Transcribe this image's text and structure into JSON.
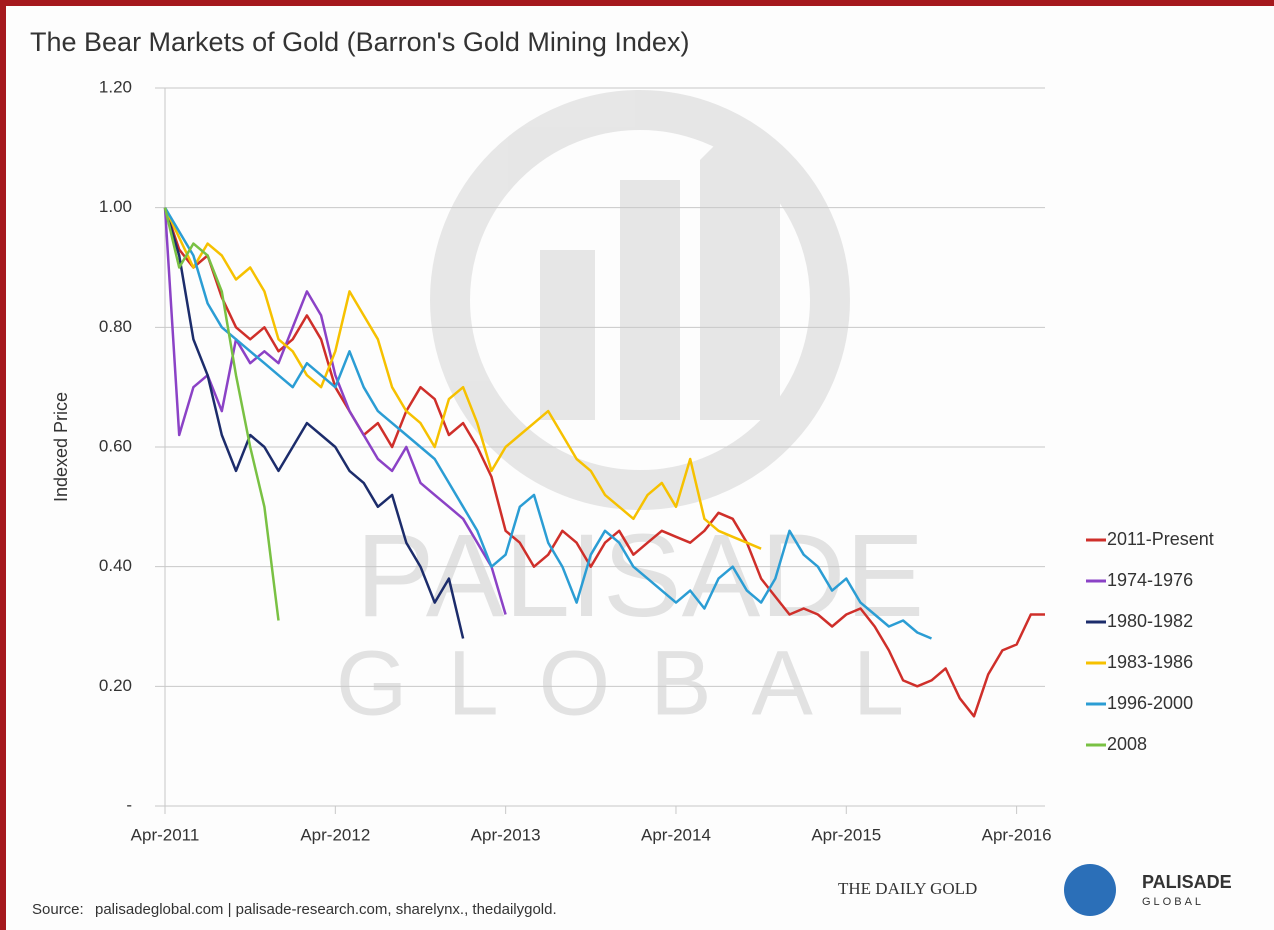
{
  "chart_data": {
    "type": "line",
    "title": "The Bear Markets of Gold (Barron's Gold Mining Index)",
    "y_label": "Indexed Price",
    "x": [
      "2011-04",
      "2011-05",
      "2011-06",
      "2011-07",
      "2011-08",
      "2011-09",
      "2011-10",
      "2011-11",
      "2011-12",
      "2012-01",
      "2012-02",
      "2012-03",
      "2012-04",
      "2012-05",
      "2012-06",
      "2012-07",
      "2012-08",
      "2012-09",
      "2012-10",
      "2012-11",
      "2012-12",
      "2013-01",
      "2013-02",
      "2013-03",
      "2013-04",
      "2013-05",
      "2013-06",
      "2013-07",
      "2013-08",
      "2013-09",
      "2013-10",
      "2013-11",
      "2013-12",
      "2014-01",
      "2014-02",
      "2014-03",
      "2014-04",
      "2014-05",
      "2014-06",
      "2014-07",
      "2014-08",
      "2014-09",
      "2014-10",
      "2014-11",
      "2014-12",
      "2015-01",
      "2015-02",
      "2015-03",
      "2015-04",
      "2015-05",
      "2015-06",
      "2015-07",
      "2015-08",
      "2015-09",
      "2015-10",
      "2015-11",
      "2015-12",
      "2016-01",
      "2016-02",
      "2016-03",
      "2016-04",
      "2016-05",
      "2016-06"
    ],
    "xlim": [
      "2011-04",
      "2016-06"
    ],
    "xticks": [
      {
        "value": "2011-04",
        "label": "Apr-2011"
      },
      {
        "value": "2012-04",
        "label": "Apr-2012"
      },
      {
        "value": "2013-04",
        "label": "Apr-2013"
      },
      {
        "value": "2014-04",
        "label": "Apr-2014"
      },
      {
        "value": "2015-04",
        "label": "Apr-2015"
      },
      {
        "value": "2016-04",
        "label": "Apr-2016"
      }
    ],
    "ylim": [
      0,
      1.2
    ],
    "yticks": [
      {
        "value": 0,
        "label": "-"
      },
      {
        "value": 0.2,
        "label": "0.20"
      },
      {
        "value": 0.4,
        "label": "0.40"
      },
      {
        "value": 0.6,
        "label": "0.60"
      },
      {
        "value": 0.8,
        "label": "0.80"
      },
      {
        "value": 1.0,
        "label": "1.00"
      },
      {
        "value": 1.2,
        "label": "1.20"
      }
    ],
    "grid": true,
    "legend": "right",
    "series": [
      {
        "name": "2011-Present",
        "color": "#cf2f2a",
        "values": [
          1.0,
          0.93,
          0.9,
          0.92,
          0.85,
          0.8,
          0.78,
          0.8,
          0.76,
          0.78,
          0.82,
          0.78,
          0.7,
          0.66,
          0.62,
          0.64,
          0.6,
          0.66,
          0.7,
          0.68,
          0.62,
          0.64,
          0.6,
          0.55,
          0.46,
          0.44,
          0.4,
          0.42,
          0.46,
          0.44,
          0.4,
          0.44,
          0.46,
          0.42,
          0.44,
          0.46,
          0.45,
          0.44,
          0.46,
          0.49,
          0.48,
          0.44,
          0.38,
          0.35,
          0.32,
          0.33,
          0.32,
          0.3,
          0.32,
          0.33,
          0.3,
          0.26,
          0.21,
          0.2,
          0.21,
          0.23,
          0.18,
          0.15,
          0.22,
          0.26,
          0.27,
          0.32,
          0.32
        ]
      },
      {
        "name": "1974-1976",
        "color": "#8b42c6",
        "values": [
          1.0,
          0.62,
          0.7,
          0.72,
          0.66,
          0.78,
          0.74,
          0.76,
          0.74,
          0.8,
          0.86,
          0.82,
          0.72,
          0.66,
          0.62,
          0.58,
          0.56,
          0.6,
          0.54,
          0.52,
          0.5,
          0.48,
          0.44,
          0.4,
          0.32,
          null,
          null,
          null,
          null,
          null,
          null,
          null,
          null,
          null,
          null,
          null,
          null,
          null,
          null,
          null,
          null,
          null,
          null,
          null,
          null,
          null,
          null,
          null,
          null,
          null,
          null,
          null,
          null,
          null,
          null,
          null,
          null,
          null,
          null,
          null,
          null,
          null,
          null
        ]
      },
      {
        "name": "1980-1982",
        "color": "#1c2c6b",
        "values": [
          1.0,
          0.92,
          0.78,
          0.72,
          0.62,
          0.56,
          0.62,
          0.6,
          0.56,
          0.6,
          0.64,
          0.62,
          0.6,
          0.56,
          0.54,
          0.5,
          0.52,
          0.44,
          0.4,
          0.34,
          0.38,
          0.28,
          null,
          null,
          null,
          null,
          null,
          null,
          null,
          null,
          null,
          null,
          null,
          null,
          null,
          null,
          null,
          null,
          null,
          null,
          null,
          null,
          null,
          null,
          null,
          null,
          null,
          null,
          null,
          null,
          null,
          null,
          null,
          null,
          null,
          null,
          null,
          null,
          null,
          null,
          null,
          null,
          null
        ]
      },
      {
        "name": "1983-1986",
        "color": "#f6c100",
        "values": [
          1.0,
          0.95,
          0.9,
          0.94,
          0.92,
          0.88,
          0.9,
          0.86,
          0.78,
          0.76,
          0.72,
          0.7,
          0.76,
          0.86,
          0.82,
          0.78,
          0.7,
          0.66,
          0.64,
          0.6,
          0.68,
          0.7,
          0.64,
          0.56,
          0.6,
          0.62,
          0.64,
          0.66,
          0.62,
          0.58,
          0.56,
          0.52,
          0.5,
          0.48,
          0.52,
          0.54,
          0.5,
          0.58,
          0.48,
          0.46,
          0.45,
          0.44,
          0.43,
          null,
          null,
          null,
          null,
          null,
          null,
          null,
          null,
          null,
          null,
          null,
          null,
          null,
          null,
          null,
          null,
          null,
          null,
          null,
          null
        ]
      },
      {
        "name": "1996-2000",
        "color": "#2b9dd4",
        "values": [
          1.0,
          0.96,
          0.92,
          0.84,
          0.8,
          0.78,
          0.76,
          0.74,
          0.72,
          0.7,
          0.74,
          0.72,
          0.7,
          0.76,
          0.7,
          0.66,
          0.64,
          0.62,
          0.6,
          0.58,
          0.54,
          0.5,
          0.46,
          0.4,
          0.42,
          0.5,
          0.52,
          0.44,
          0.4,
          0.34,
          0.42,
          0.46,
          0.44,
          0.4,
          0.38,
          0.36,
          0.34,
          0.36,
          0.33,
          0.38,
          0.4,
          0.36,
          0.34,
          0.38,
          0.46,
          0.42,
          0.4,
          0.36,
          0.38,
          0.34,
          0.32,
          0.3,
          0.31,
          0.29,
          0.28,
          null,
          null,
          null,
          null,
          null,
          null,
          null,
          null
        ]
      },
      {
        "name": "2008",
        "color": "#79c143",
        "values": [
          1.0,
          0.9,
          0.94,
          0.92,
          0.86,
          0.72,
          0.6,
          0.5,
          0.31,
          null,
          null,
          null,
          null,
          null,
          null,
          null,
          null,
          null,
          null,
          null,
          null,
          null,
          null,
          null,
          null,
          null,
          null,
          null,
          null,
          null,
          null,
          null,
          null,
          null,
          null,
          null,
          null,
          null,
          null,
          null,
          null,
          null,
          null,
          null,
          null,
          null,
          null,
          null,
          null,
          null,
          null,
          null,
          null,
          null,
          null,
          null,
          null,
          null,
          null,
          null,
          null,
          null,
          null
        ]
      }
    ],
    "watermark": [
      "PALISADE",
      "GLOBAL"
    ],
    "source_label": "Source:",
    "source_links": "palisadeglobal.com  | palisade-research.com, sharelynx., thedailygold.",
    "logo_left": "THE DAILY GOLD",
    "logo_right": [
      "PALISADE",
      "GLOBAL"
    ]
  }
}
